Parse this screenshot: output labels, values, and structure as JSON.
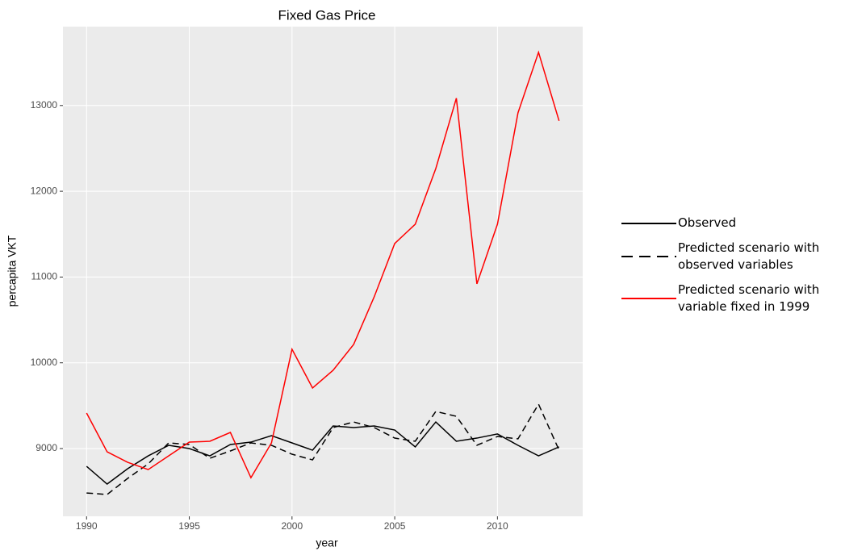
{
  "chart_data": {
    "type": "line",
    "title": "Fixed Gas Price",
    "x_label": "year",
    "y_label": "percapita VKT",
    "x": [
      1990,
      1991,
      1992,
      1993,
      1994,
      1995,
      1996,
      1997,
      1998,
      1999,
      2000,
      2001,
      2002,
      2003,
      2004,
      2005,
      2006,
      2007,
      2008,
      2009,
      2010,
      2011,
      2012,
      2013
    ],
    "series": [
      {
        "name": "Observed",
        "color": "#000000",
        "dash": "solid",
        "values": [
          8793,
          8586,
          8765,
          8915,
          9038,
          9000,
          8915,
          9047,
          9075,
          9150,
          9066,
          8981,
          9263,
          9245,
          9263,
          9216,
          9019,
          9310,
          9085,
          9122,
          9170,
          9038,
          8915,
          9019
        ]
      },
      {
        "name": "Predicted scenario with observed variables",
        "color": "#000000",
        "dash": "dashed",
        "values": [
          8482,
          8464,
          8652,
          8821,
          9066,
          9047,
          8887,
          8972,
          9066,
          9038,
          8934,
          8868,
          9245,
          9310,
          9245,
          9122,
          9085,
          9433,
          9376,
          9038,
          9141,
          9113,
          9518,
          8981
        ]
      },
      {
        "name": "Predicted scenario with variable fixed in 1999",
        "color": "#ff0000",
        "dash": "solid",
        "values": [
          9414,
          8962,
          8840,
          8755,
          8915,
          9075,
          9085,
          9188,
          8660,
          9066,
          10158,
          9706,
          9913,
          10214,
          10769,
          11391,
          11616,
          12266,
          13085,
          10920,
          11616,
          12915,
          13621,
          12821
        ]
      }
    ],
    "xlim": [
      1988.85,
      2014.15
    ],
    "xticks": [
      1990,
      1995,
      2000,
      2005,
      2010
    ],
    "ylim": [
      8210,
      13920
    ],
    "yticks": [
      9000,
      10000,
      11000,
      12000,
      13000
    ],
    "grid": true,
    "legend": "right"
  }
}
